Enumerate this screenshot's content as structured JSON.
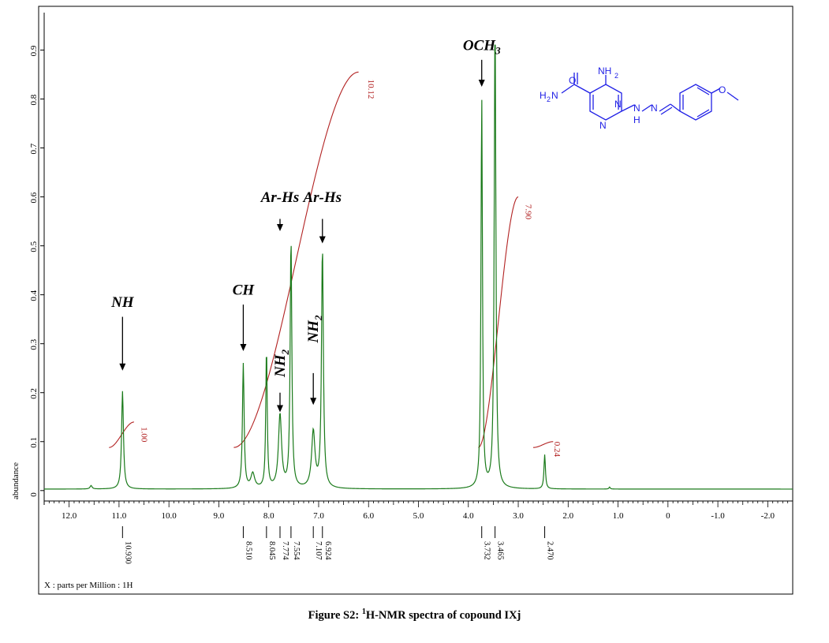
{
  "caption": {
    "prefix": "Figure S2: ",
    "sup": "1",
    "rest": "H-NMR spectra of copound IXj"
  },
  "chart_data": {
    "type": "line",
    "title": "",
    "xlabel": "X : parts per Million : 1H",
    "ylabel": "abundance",
    "xlim": [
      12.5,
      -2.5
    ],
    "ylim": [
      -0.01,
      0.97
    ],
    "x_reversed": true,
    "x_ticks": [
      12.0,
      11.0,
      10.0,
      9.0,
      8.0,
      7.0,
      6.0,
      5.0,
      4.0,
      3.0,
      2.0,
      1.0,
      0,
      -1.0,
      -2.0
    ],
    "x_tick_labels": [
      "12.0",
      "11.0",
      "10.0",
      "9.0",
      "8.0",
      "7.0",
      "6.0",
      "5.0",
      "4.0",
      "3.0",
      "2.0",
      "1.0",
      "0",
      "-1.0",
      "-2.0"
    ],
    "y_ticks": [
      0,
      0.1,
      0.2,
      0.3,
      0.4,
      0.5,
      0.6,
      0.7,
      0.8,
      0.9
    ],
    "y_tick_labels": [
      "0",
      "0.1",
      "0.2",
      "0.3",
      "0.4",
      "0.5",
      "0.6",
      "0.7",
      "0.8",
      "0.9"
    ],
    "spectrum_color": "#1a7a1a",
    "integral_color": "#b22222",
    "baseline": 0.003,
    "peaks": [
      {
        "ppm": 11.56,
        "height": 0.007,
        "width": 0.05
      },
      {
        "ppm": 10.93,
        "height": 0.2,
        "width": 0.045
      },
      {
        "ppm": 8.51,
        "height": 0.255,
        "width": 0.04
      },
      {
        "ppm": 8.32,
        "height": 0.03,
        "width": 0.09
      },
      {
        "ppm": 8.045,
        "height": 0.285,
        "width": 0.035
      },
      {
        "ppm": 7.774,
        "height": 0.15,
        "width": 0.075
      },
      {
        "ppm": 7.554,
        "height": 0.51,
        "width": 0.04
      },
      {
        "ppm": 7.107,
        "height": 0.115,
        "width": 0.08
      },
      {
        "ppm": 6.924,
        "height": 0.49,
        "width": 0.045
      },
      {
        "ppm": 3.732,
        "height": 0.8,
        "width": 0.035
      },
      {
        "ppm": 3.465,
        "height": 0.96,
        "width": 0.04
      },
      {
        "ppm": 2.47,
        "height": 0.07,
        "width": 0.035
      },
      {
        "ppm": 1.17,
        "height": 0.004,
        "width": 0.03
      }
    ],
    "peak_labels": [
      "10.930",
      "8.510",
      "8.045",
      "7.774",
      "7.554",
      "7.107",
      "6.924",
      "3.732",
      "3.465",
      "2.470"
    ],
    "peak_label_ppm": [
      10.93,
      8.51,
      8.045,
      7.774,
      7.554,
      7.107,
      6.924,
      3.732,
      3.465,
      2.47
    ],
    "integrals": [
      {
        "label": "1.00",
        "from": 11.2,
        "to": 10.7,
        "start_level": 0.088,
        "end_level": 0.14,
        "label_ppm": 10.55,
        "label_level": 0.13
      },
      {
        "label": "10.12",
        "from": 8.7,
        "to": 6.2,
        "start_level": 0.088,
        "end_level": 0.855,
        "label_ppm": 6.0,
        "label_level": 0.84
      },
      {
        "label": "7.90",
        "from": 3.8,
        "to": 3.0,
        "start_level": 0.088,
        "end_level": 0.6,
        "label_ppm": 2.85,
        "label_level": 0.585
      },
      {
        "label": "0.24",
        "from": 2.7,
        "to": 2.3,
        "start_level": 0.088,
        "end_level": 0.1,
        "label_ppm": 2.27,
        "label_level": 0.1
      }
    ],
    "annotations": [
      {
        "label": "NH",
        "sub": "",
        "ppm": 10.93,
        "label_level": 0.375,
        "arrow_from": 0.355,
        "arrow_to": 0.245,
        "rotated": false
      },
      {
        "label": "CH",
        "sub": "",
        "ppm": 8.51,
        "label_level": 0.4,
        "arrow_from": 0.38,
        "arrow_to": 0.285,
        "rotated": false
      },
      {
        "label": "Ar-Hs",
        "sub": "",
        "ppm": 7.774,
        "label_level": 0.59,
        "arrow_from": 0.555,
        "arrow_to": 0.53,
        "rotated": false
      },
      {
        "label": "Ar-Hs",
        "sub": "",
        "ppm": 6.924,
        "label_level": 0.59,
        "arrow_from": 0.555,
        "arrow_to": 0.505,
        "rotated": false
      },
      {
        "label": "NH",
        "sub": "2",
        "ppm": 7.774,
        "label_level": 0.26,
        "arrow_from": 0.2,
        "arrow_to": 0.16,
        "rotated": true
      },
      {
        "label": "NH",
        "sub": "2",
        "ppm": 7.107,
        "label_level": 0.33,
        "arrow_from": 0.24,
        "arrow_to": 0.175,
        "rotated": true
      },
      {
        "label": "OCH",
        "sub": "3",
        "ppm": 3.732,
        "label_level": 0.9,
        "arrow_from": 0.88,
        "arrow_to": 0.825,
        "rotated": false
      }
    ]
  }
}
